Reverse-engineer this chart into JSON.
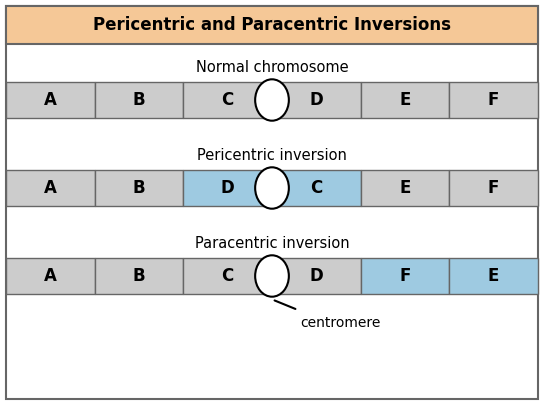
{
  "title": "Pericentric and Paracentric Inversions",
  "title_bg": "#f5c897",
  "title_fontsize": 12,
  "fig_bg": "#ffffff",
  "border_color": "#666666",
  "cell_bg_normal": "#cccccc",
  "cell_bg_highlight": "#9ecae1",
  "rows": [
    {
      "label": "Normal chromosome",
      "genes": [
        "A",
        "B",
        "C",
        "D",
        "E",
        "F"
      ],
      "highlights": [],
      "centromere_after": 2
    },
    {
      "label": "Pericentric inversion",
      "genes": [
        "A",
        "B",
        "D",
        "C",
        "E",
        "F"
      ],
      "highlights": [
        2,
        3
      ],
      "centromere_after": 2
    },
    {
      "label": "Paracentric inversion",
      "genes": [
        "A",
        "B",
        "C",
        "D",
        "F",
        "E"
      ],
      "highlights": [
        4,
        5
      ],
      "centromere_after": 2
    }
  ],
  "centromere_label": "centromere",
  "n_genes": 6,
  "label_fontsize": 10.5,
  "gene_fontsize": 12
}
